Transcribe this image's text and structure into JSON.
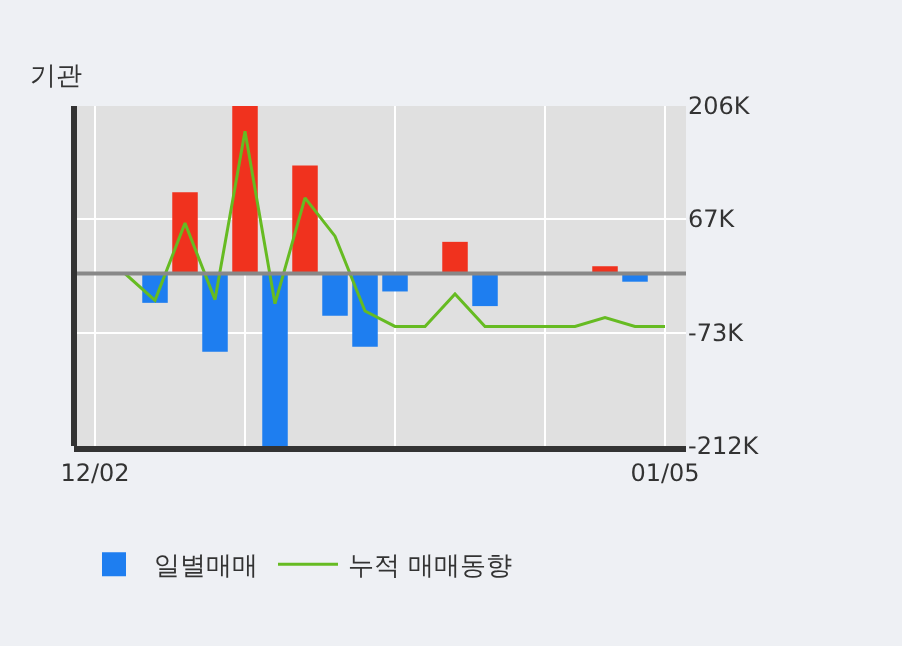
{
  "chart_data": {
    "type": "bar",
    "title": "기관",
    "categories": [
      "12/02",
      null,
      null,
      null,
      null,
      null,
      null,
      null,
      null,
      null,
      null,
      null,
      null,
      null,
      null,
      null,
      null,
      null,
      null,
      "01/05"
    ],
    "series": [
      {
        "name": "일별매매",
        "colors": [
          "#1e7ef0",
          "#1e7ef0",
          "#1e7ef0",
          "#f0321e",
          "#1e7ef0",
          "#f0321e",
          "#1e7ef0",
          "#f0321e",
          "#1e7ef0",
          "#1e7ef0",
          "#1e7ef0",
          "#1e7ef0",
          "#f0321e",
          "#1e7ef0",
          "#1e7ef0",
          "#1e7ef0",
          "#1e7ef0",
          "#f0321e",
          "#1e7ef0",
          "#1e7ef0"
        ],
        "values": [
          null,
          null,
          -36000,
          100000,
          -96000,
          206000,
          -212000,
          133000,
          -52000,
          -90000,
          -22000,
          null,
          39000,
          -40000,
          null,
          null,
          null,
          9000,
          -10000,
          null
        ]
      },
      {
        "name": "누적 매매동향",
        "type": "line",
        "color": "#66bb22",
        "values": [
          0,
          0,
          -33000,
          62000,
          -32000,
          175000,
          -37000,
          93000,
          46000,
          -46000,
          -65000,
          -65000,
          -25000,
          -65000,
          -65000,
          -65000,
          -65000,
          -54000,
          -65000,
          -65000
        ]
      }
    ],
    "ylim": [
      -212000,
      206000
    ],
    "yticks": [
      {
        "value": 206000,
        "label": "206K"
      },
      {
        "value": 67000,
        "label": "67K"
      },
      {
        "value": -73000,
        "label": "-73K"
      },
      {
        "value": -212000,
        "label": "-212K"
      }
    ],
    "ref_lines": [
      {
        "axis": "y",
        "value": 0,
        "color": "#888888"
      }
    ],
    "grid": true,
    "legend": "bottom",
    "marker": "none",
    "line_style": "solid"
  }
}
